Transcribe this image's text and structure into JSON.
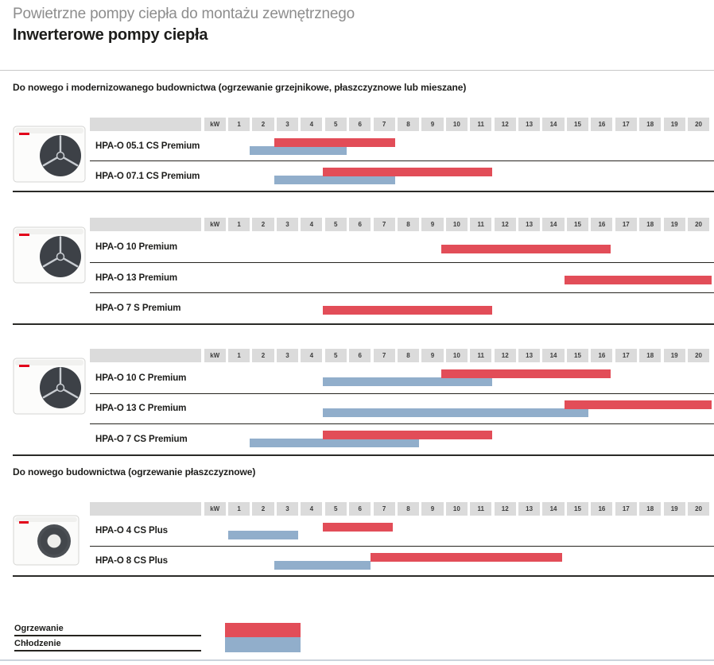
{
  "header": {
    "title": "Powietrzne pompy ciepła do montażu zewnętrznego",
    "subtitle": "Inwerterowe pompy ciepła"
  },
  "sections": [
    {
      "heading": "Do nowego i modernizowanego budownictwa (ogrzewanie grzejnikowe, płaszczyznowe lub mieszane)",
      "charts": [
        0,
        1,
        2
      ]
    },
    {
      "heading": "Do nowego budownictwa (ogrzewanie płaszczyznowe)",
      "charts": [
        3
      ]
    }
  ],
  "axis": {
    "unit_label": "kW",
    "min": 0,
    "max": 20,
    "ticks": [
      "1",
      "2",
      "3",
      "4",
      "5",
      "6",
      "7",
      "8",
      "9",
      "10",
      "11",
      "12",
      "13",
      "14",
      "15",
      "16",
      "17",
      "18",
      "19",
      "20"
    ]
  },
  "legend": {
    "items": [
      {
        "label": "Ogrzewanie",
        "color_key": "heating"
      },
      {
        "label": "Chłodzenie",
        "color_key": "cooling"
      }
    ]
  },
  "colors": {
    "heating": "#e24d58",
    "cooling": "#91aecb",
    "header_cell": "#dbdbdb",
    "separator": "#26241f",
    "title_gray": "#8d8d8d",
    "bottom_rule": "#ccd4dc",
    "logo_red": "#e2001a"
  },
  "chart_data": [
    {
      "type": "bar",
      "subtype": "horizontal-range",
      "section": "Do nowego i modernizowanego budownictwa (ogrzewanie grzejnikowe, płaszczyznowe lub mieszane)",
      "unit": "kW",
      "xlim": [
        0,
        20
      ],
      "x_ticks": [
        1,
        2,
        3,
        4,
        5,
        6,
        7,
        8,
        9,
        10,
        11,
        12,
        13,
        14,
        15,
        16,
        17,
        18,
        19,
        20
      ],
      "image": "heat-pump-three-blade-fan",
      "categories": [
        "HPA-O 05.1 CS Premium",
        "HPA-O 07.1 CS Premium"
      ],
      "series": [
        {
          "name": "Ogrzewanie",
          "color": "#e24d58",
          "ranges": [
            [
              1.9,
              6.9
            ],
            [
              3.9,
              10.9
            ]
          ]
        },
        {
          "name": "Chłodzenie",
          "color": "#91aecb",
          "ranges": [
            [
              0.9,
              4.9
            ],
            [
              1.9,
              6.9
            ]
          ]
        }
      ]
    },
    {
      "type": "bar",
      "subtype": "horizontal-range",
      "section": "Do nowego i modernizowanego budownictwa (ogrzewanie grzejnikowe, płaszczyznowe lub mieszane)",
      "unit": "kW",
      "xlim": [
        0,
        20
      ],
      "x_ticks": [
        1,
        2,
        3,
        4,
        5,
        6,
        7,
        8,
        9,
        10,
        11,
        12,
        13,
        14,
        15,
        16,
        17,
        18,
        19,
        20
      ],
      "image": "heat-pump-three-blade-fan",
      "categories": [
        "HPA-O 10 Premium",
        "HPA-O 13 Premium",
        "HPA-O 7 S Premium"
      ],
      "series": [
        {
          "name": "Ogrzewanie",
          "color": "#e24d58",
          "ranges": [
            [
              8.8,
              15.8
            ],
            [
              13.9,
              20
            ],
            [
              3.9,
              10.9
            ]
          ]
        },
        {
          "name": "Chłodzenie",
          "color": "#91aecb",
          "ranges": [
            null,
            null,
            null
          ]
        }
      ]
    },
    {
      "type": "bar",
      "subtype": "horizontal-range",
      "section": "Do nowego i modernizowanego budownictwa (ogrzewanie grzejnikowe, płaszczyznowe lub mieszane)",
      "unit": "kW",
      "xlim": [
        0,
        20
      ],
      "x_ticks": [
        1,
        2,
        3,
        4,
        5,
        6,
        7,
        8,
        9,
        10,
        11,
        12,
        13,
        14,
        15,
        16,
        17,
        18,
        19,
        20
      ],
      "image": "heat-pump-three-blade-fan",
      "categories": [
        "HPA-O 10 C Premium",
        "HPA-O 13 C Premium",
        "HPA-O 7 CS Premium"
      ],
      "series": [
        {
          "name": "Ogrzewanie",
          "color": "#e24d58",
          "ranges": [
            [
              8.8,
              15.8
            ],
            [
              13.9,
              20
            ],
            [
              3.9,
              10.9
            ]
          ]
        },
        {
          "name": "Chłodzenie",
          "color": "#91aecb",
          "ranges": [
            [
              3.9,
              10.9
            ],
            [
              3.9,
              14.9
            ],
            [
              0.9,
              7.9
            ]
          ]
        }
      ]
    },
    {
      "type": "bar",
      "subtype": "horizontal-range",
      "section": "Do nowego budownictwa (ogrzewanie płaszczyznowe)",
      "unit": "kW",
      "xlim": [
        0,
        20
      ],
      "x_ticks": [
        1,
        2,
        3,
        4,
        5,
        6,
        7,
        8,
        9,
        10,
        11,
        12,
        13,
        14,
        15,
        16,
        17,
        18,
        19,
        20
      ],
      "image": "heat-pump-ring-fan",
      "categories": [
        "HPA-O 4 CS Plus",
        "HPA-O 8 CS Plus"
      ],
      "series": [
        {
          "name": "Ogrzewanie",
          "color": "#e24d58",
          "ranges": [
            [
              3.9,
              6.8
            ],
            [
              5.9,
              13.8
            ]
          ]
        },
        {
          "name": "Chłodzenie",
          "color": "#91aecb",
          "ranges": [
            [
              0,
              2.9
            ],
            [
              1.9,
              5.9
            ]
          ]
        }
      ]
    }
  ]
}
